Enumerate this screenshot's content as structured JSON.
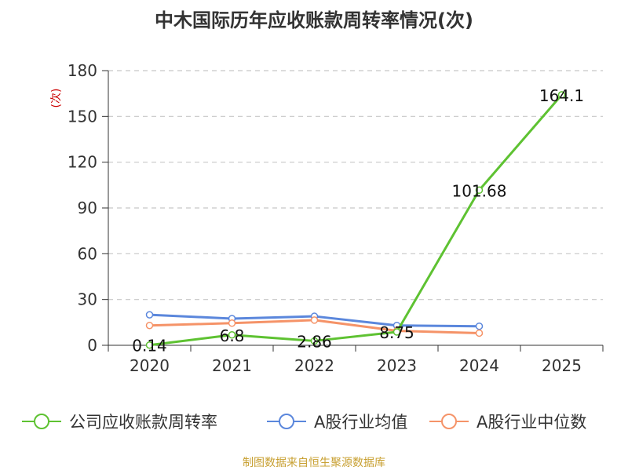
{
  "chart_data": {
    "type": "line",
    "title": "中木国际历年应收账款周转率情况(次)",
    "ylabel": "(次)",
    "xlabel": "",
    "categories": [
      "2020",
      "2021",
      "2022",
      "2023",
      "2024",
      "2025"
    ],
    "ylim": [
      0,
      180
    ],
    "yticks": [
      0,
      30,
      60,
      90,
      120,
      150,
      180
    ],
    "grid": true,
    "legend_position": "bottom",
    "series": [
      {
        "name": "公司应收账款周转率",
        "color": "#5ec232",
        "values": [
          0.14,
          6.8,
          2.86,
          8.75,
          101.68,
          164.1
        ],
        "labels": [
          "0.14",
          "6.8",
          "2.86",
          "8.75",
          "101.68",
          "164.1"
        ]
      },
      {
        "name": "A股行业均值",
        "color": "#5b87dc",
        "values": [
          20,
          17.5,
          19,
          13,
          12.5,
          null
        ]
      },
      {
        "name": "A股行业中位数",
        "color": "#f59368",
        "values": [
          13,
          14.5,
          16.5,
          9.5,
          8,
          null
        ]
      }
    ],
    "source": "制图数据来自恒生聚源数据库"
  }
}
